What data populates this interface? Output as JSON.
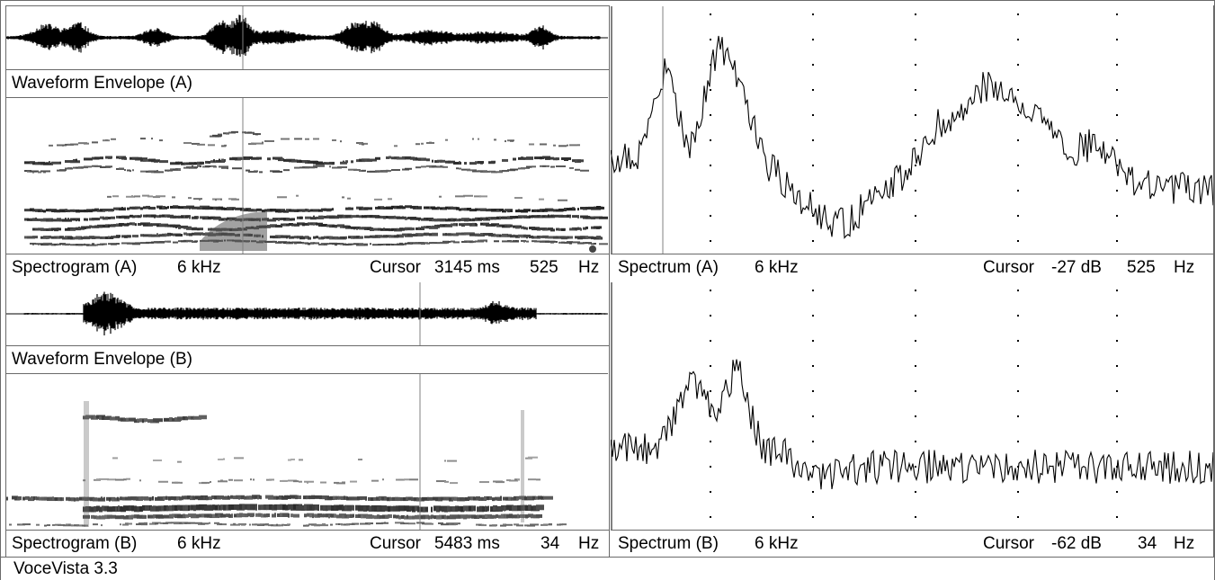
{
  "app": {
    "title": "VoceVista 3.3"
  },
  "colors": {
    "border": "#6a6a6a",
    "trace": "#000000",
    "cursor_line": "#808080"
  },
  "panels": {
    "waveform_a": {
      "label": "Waveform Envelope (A)",
      "cursor_ms": 3145
    },
    "spectrogram_a": {
      "title": "Spectrogram (A)",
      "range": "6 kHz",
      "cursor_label": "Cursor",
      "cursor_time": "3145 ms",
      "cursor_freq": "525",
      "freq_unit": "Hz"
    },
    "spectrum_a": {
      "title": "Spectrum (A)",
      "range": "6 kHz",
      "cursor_label": "Cursor",
      "cursor_db": "-27 dB",
      "cursor_freq": "525",
      "freq_unit": "Hz"
    },
    "waveform_b": {
      "label": "Waveform Envelope (B)",
      "cursor_ms": 5483
    },
    "spectrogram_b": {
      "title": "Spectrogram (B)",
      "range": "6 kHz",
      "cursor_label": "Cursor",
      "cursor_time": "5483 ms",
      "cursor_freq": "34",
      "freq_unit": "Hz"
    },
    "spectrum_b": {
      "title": "Spectrum (B)",
      "range": "6 kHz",
      "cursor_label": "Cursor",
      "cursor_db": "-62 dB",
      "cursor_freq": "34",
      "freq_unit": "Hz"
    }
  }
}
